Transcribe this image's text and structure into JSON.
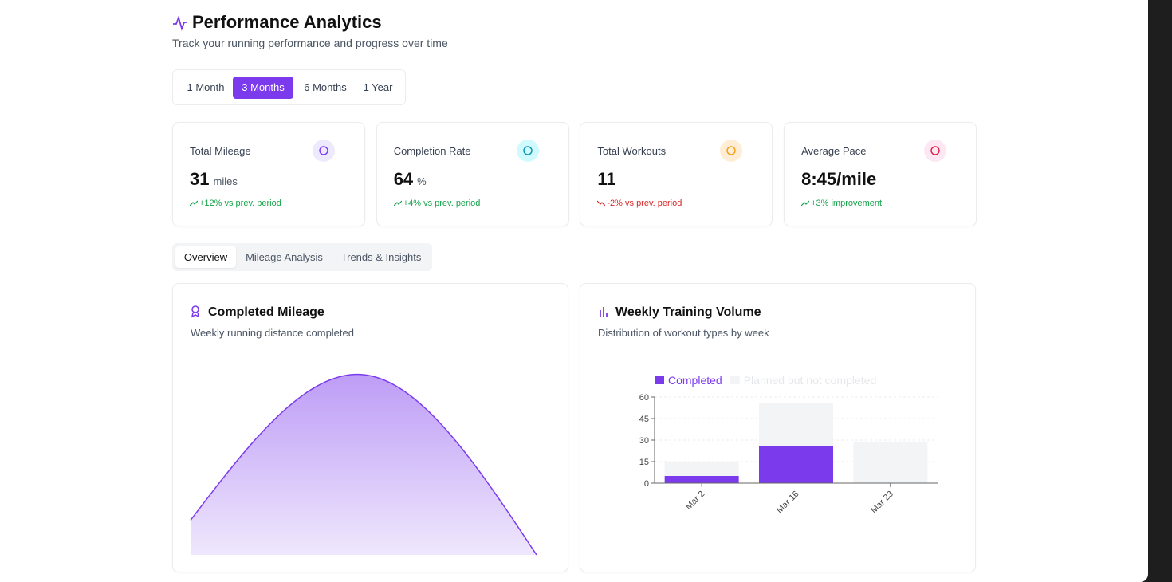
{
  "header": {
    "title": "Performance Analytics",
    "subtitle": "Track your running performance and progress over time"
  },
  "range_options": [
    "1 Month",
    "3 Months",
    "6 Months",
    "1 Year"
  ],
  "stats": [
    {
      "label": "Total Mileage",
      "value": 31,
      "unit": "miles",
      "change": "+12% vs prev. period"
    },
    {
      "label": "Completion Rate",
      "value": 64,
      "unit": "%",
      "change": "+4% vs prev. period"
    },
    {
      "label": "Total Workouts",
      "value": 11,
      "change": "-2% vs prev. period"
    },
    {
      "label": "Average Pace",
      "value": "8:45/mile",
      "change": "+3% improvement"
    }
  ],
  "tabs": [
    "Overview",
    "Mileage Analysis",
    "Trends & Insights"
  ],
  "chart_data": [
    {
      "type": "area",
      "title": "Completed Mileage",
      "subtitle": "Weekly running distance completed",
      "values": [
        5,
        26,
        0
      ],
      "color": "#7c3aed"
    },
    {
      "type": "bar",
      "title": "Weekly Training Volume",
      "subtitle": "Distribution of workout types by week",
      "stacked": true,
      "categories": [
        "Mar 2",
        "Mar 16",
        "Mar 23"
      ],
      "series": [
        {
          "name": "Completed",
          "color": "#7c3aed",
          "values": [
            5,
            26,
            0
          ]
        },
        {
          "name": "Planned but not completed",
          "color": "#f3f4f6",
          "values": [
            10,
            30,
            29
          ]
        }
      ],
      "ylim": [
        0,
        60
      ],
      "yticks": [
        0,
        15,
        30,
        45,
        60
      ],
      "grid": true,
      "legend": "top"
    }
  ]
}
